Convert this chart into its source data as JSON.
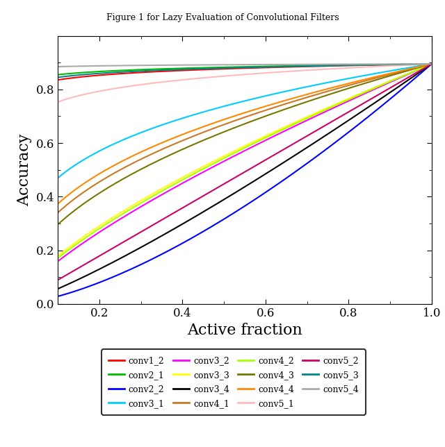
{
  "title": "Figure 1 for Lazy Evaluation of Convolutional Filters",
  "xlabel": "Active fraction",
  "ylabel": "Accuracy",
  "xlim": [
    0.1,
    1.0
  ],
  "ylim": [
    0.0,
    1.0
  ],
  "y_max": 0.895,
  "series": [
    {
      "label": "conv1_2",
      "color": "#ff0000",
      "k": 0.03
    },
    {
      "label": "conv2_1",
      "color": "#00bb00",
      "k": 0.02
    },
    {
      "label": "conv2_2",
      "color": "#0000ff",
      "k": 1.5
    },
    {
      "label": "conv3_1",
      "color": "#00ccff",
      "k": 0.28
    },
    {
      "label": "conv3_2",
      "color": "#ff00ff",
      "k": 0.75
    },
    {
      "label": "conv3_3",
      "color": "#ffff00",
      "k": 0.7
    },
    {
      "label": "conv3_4",
      "color": "#000000",
      "k": 1.2
    },
    {
      "label": "conv4_1",
      "color": "#cc7722",
      "k": 0.42
    },
    {
      "label": "conv4_2",
      "color": "#aaff00",
      "k": 0.72
    },
    {
      "label": "conv4_3",
      "color": "#777700",
      "k": 0.48
    },
    {
      "label": "conv4_4",
      "color": "#ff8800",
      "k": 0.38
    },
    {
      "label": "conv5_1",
      "color": "#ffbbbb",
      "k": 0.075
    },
    {
      "label": "conv5_2",
      "color": "#cc0066",
      "k": 1.0
    },
    {
      "label": "conv5_3",
      "color": "#008888",
      "k": 0.025
    },
    {
      "label": "conv5_4",
      "color": "#aaaaaa",
      "k": 0.005
    }
  ],
  "xticks": [
    0.2,
    0.4,
    0.6,
    0.8,
    1.0
  ],
  "yticks": [
    0.0,
    0.2,
    0.4,
    0.6,
    0.8
  ],
  "legend_ncol": 4,
  "linewidth": 1.5,
  "tick_fontsize": 12,
  "label_fontsize": 16
}
